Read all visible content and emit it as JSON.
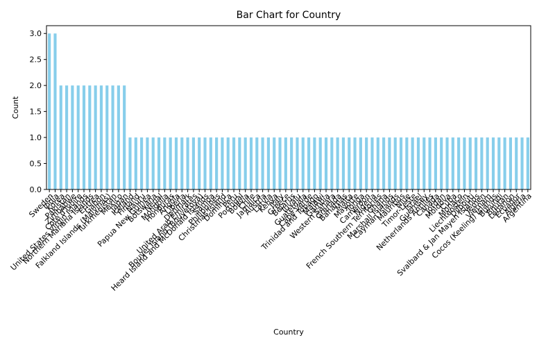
{
  "chart_data": {
    "type": "bar",
    "title": "Bar Chart for Country",
    "x_label": "Country",
    "y_label": "Count",
    "color": "#87ceeb",
    "categories": [
      "Sweden",
      "India",
      "Korea",
      "Pakistan",
      "Zimbabwe",
      "Cote d'Ivoire",
      "United States Virgin Islands",
      "Northern Mariana Islands",
      "Eritrea",
      "Gabon",
      "Falkland Islands (Malvinas)",
      "Turkmenistan",
      "Mexico",
      "Japan",
      "Iceland",
      "Finland",
      "Nauru",
      "Papua New Guinea",
      "Botswana",
      "Nepal",
      "Mongolia",
      "Honduras",
      "Angola",
      "Liberia",
      "Denmark",
      "United Arab Emirates",
      "Bouvet Island (Bouvetoya)",
      "Heard Island and McDonald Islands",
      "Samoa",
      "Philippines",
      "Christmas Island",
      "Dominica",
      "Peru",
      "Portugal",
      "Bolivia",
      "Chile",
      "Jamaica",
      "Austria",
      "Latvia",
      "Kenya",
      "Italy",
      "Greece",
      "Belarus",
      "Tuvalu",
      "Guatemala",
      "Cape Verde",
      "Trinidad and Tobago",
      "Malawi",
      "Gambia",
      "Western Sahara",
      "Grenada",
      "Bahamas",
      "Malta",
      "Mayotte",
      "Tonga",
      "Cameroon",
      "Nigeria",
      "French Southern Territories",
      "Ghana",
      "Marshall Islands",
      "Cayman Islands",
      "Mauritius",
      "Niue",
      "Timor-Leste",
      "Israel",
      "Guernsey",
      "Netherlands Antilles",
      "Canada",
      "Jordan",
      "Moldova",
      "Cuba",
      "Monaco",
      "Liechtenstein",
      "Djibouti",
      "Svalbard & Jan Mayen Islands",
      "Yemen",
      "Vietnam",
      "Cocos (Keeling) Islands",
      "Burundi",
      "Bhutan",
      "Lebanon",
      "Ecuador",
      "Algeria",
      "Argentina"
    ],
    "values": [
      3,
      3,
      2,
      2,
      2,
      2,
      2,
      2,
      2,
      2,
      2,
      2,
      2,
      2,
      1,
      1,
      1,
      1,
      1,
      1,
      1,
      1,
      1,
      1,
      1,
      1,
      1,
      1,
      1,
      1,
      1,
      1,
      1,
      1,
      1,
      1,
      1,
      1,
      1,
      1,
      1,
      1,
      1,
      1,
      1,
      1,
      1,
      1,
      1,
      1,
      1,
      1,
      1,
      1,
      1,
      1,
      1,
      1,
      1,
      1,
      1,
      1,
      1,
      1,
      1,
      1,
      1,
      1,
      1,
      1,
      1,
      1,
      1,
      1,
      1,
      1,
      1,
      1,
      1,
      1,
      1,
      1,
      1,
      1
    ],
    "ylim": [
      0,
      3.15
    ],
    "yticks": [
      {
        "value": 0,
        "label": "0.0"
      },
      {
        "value": 0.5,
        "label": "0.5"
      },
      {
        "value": 1,
        "label": "1.0"
      },
      {
        "value": 1.5,
        "label": "1.5"
      },
      {
        "value": 2,
        "label": "2.0"
      },
      {
        "value": 2.5,
        "label": "2.5"
      },
      {
        "value": 3,
        "label": "3.0"
      }
    ]
  }
}
